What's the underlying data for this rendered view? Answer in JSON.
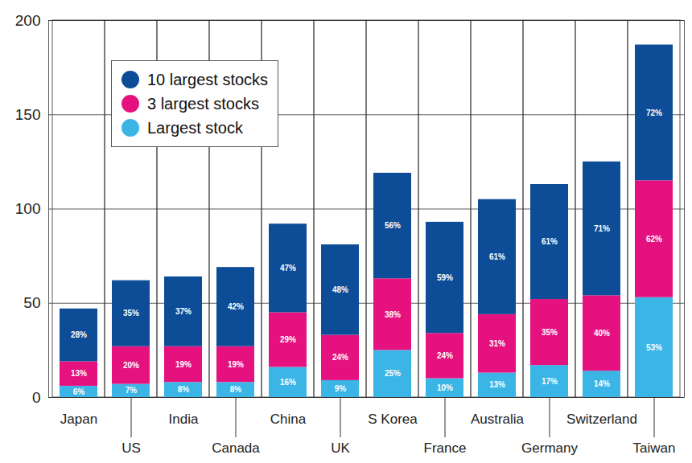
{
  "chart_data": {
    "type": "bar",
    "categories": [
      "Japan",
      "US",
      "India",
      "Canada",
      "China",
      "UK",
      "S Korea",
      "France",
      "Australia",
      "Germany",
      "Switzerland",
      "Taiwan"
    ],
    "series": [
      {
        "name": "10 largest stocks",
        "color": "#0d4c97",
        "values": [
          28,
          35,
          37,
          42,
          47,
          48,
          56,
          59,
          61,
          61,
          71,
          72
        ],
        "value_labels": [
          "28%",
          "35%",
          "37%",
          "42%",
          "47%",
          "48%",
          "56%",
          "59%",
          "61%",
          "61%",
          "71%",
          "72%"
        ]
      },
      {
        "name": "3 largest stocks",
        "color": "#e5117f",
        "values": [
          13,
          20,
          19,
          19,
          29,
          24,
          38,
          24,
          31,
          35,
          40,
          62
        ],
        "value_labels": [
          "13%",
          "20%",
          "19%",
          "19%",
          "29%",
          "24%",
          "38%",
          "24%",
          "31%",
          "35%",
          "40%",
          "62%"
        ]
      },
      {
        "name": "Largest stock",
        "color": "#3bb4e6",
        "values": [
          6,
          7,
          8,
          8,
          16,
          9,
          25,
          10,
          13,
          17,
          14,
          53
        ],
        "value_labels": [
          "6%",
          "7%",
          "8%",
          "8%",
          "16%",
          "9%",
          "25%",
          "10%",
          "13%",
          "17%",
          "14%",
          "53%"
        ]
      }
    ],
    "ylim": [
      0,
      200
    ],
    "yticks": [
      0,
      50,
      100,
      150,
      200
    ],
    "grid": true,
    "stacked": true,
    "data_labels": true,
    "legend": "top-left"
  }
}
